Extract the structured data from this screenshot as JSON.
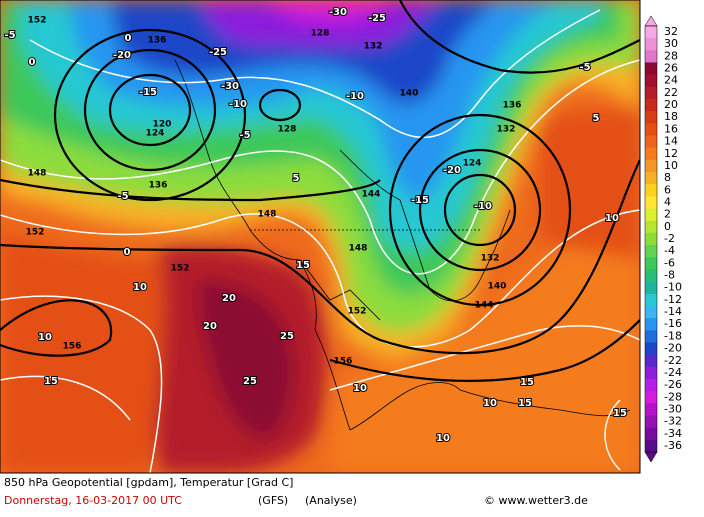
{
  "legend": {
    "levels": [
      32,
      30,
      28,
      26,
      24,
      22,
      20,
      18,
      16,
      14,
      12,
      10,
      8,
      6,
      4,
      2,
      0,
      -2,
      -4,
      -6,
      -8,
      -10,
      -12,
      -14,
      -16,
      -18,
      -20,
      -22,
      -24,
      -26,
      -28,
      -30,
      -32,
      -34,
      -36
    ],
    "colors": [
      "#f5a8e8",
      "#f090d8",
      "#e078c8",
      "#8c0a32",
      "#a01030",
      "#b41e2a",
      "#c8281e",
      "#d83c14",
      "#e45014",
      "#ee641e",
      "#f47c1e",
      "#f59628",
      "#f8b028",
      "#fcd21e",
      "#ffe632",
      "#dcf032",
      "#b4e632",
      "#8cdc3c",
      "#64d250",
      "#3cc85a",
      "#28be78",
      "#1eb4a0",
      "#28c8d2",
      "#3cb4f0",
      "#2896f0",
      "#1e6edc",
      "#1e46c8",
      "#5a28c8",
      "#8c1edc",
      "#b41ee6",
      "#d21edc",
      "#b414c8",
      "#9610b4",
      "#780aa0",
      "#5a0a8c"
    ]
  },
  "footer": {
    "title": "850 hPa Geopotential [gpdam], Temperatur [Grad C]",
    "date": "Donnerstag, 16-03-2017  00 UTC",
    "model": "(GFS)",
    "run": "(Analyse)",
    "credit": "© www.wetter3.de"
  },
  "map_labels": {
    "heights": [
      "152",
      "136",
      "132",
      "128",
      "120",
      "124",
      "136",
      "148",
      "152",
      "148",
      "144",
      "152",
      "156",
      "156",
      "152",
      "144",
      "140",
      "132",
      "128",
      "136",
      "124",
      "148",
      "132",
      "140"
    ],
    "temps": [
      "-5",
      "0",
      "-20",
      "-25",
      "-30",
      "-15",
      "-10",
      "-5",
      "0",
      "-5",
      "5",
      "10",
      "10",
      "15",
      "20",
      "25",
      "25",
      "20",
      "15",
      "10",
      "15",
      "10",
      "-15",
      "-20",
      "-10",
      "-5",
      "0",
      "5",
      "10",
      "15",
      "10",
      "15",
      "-25",
      "-30",
      "-10"
    ]
  }
}
